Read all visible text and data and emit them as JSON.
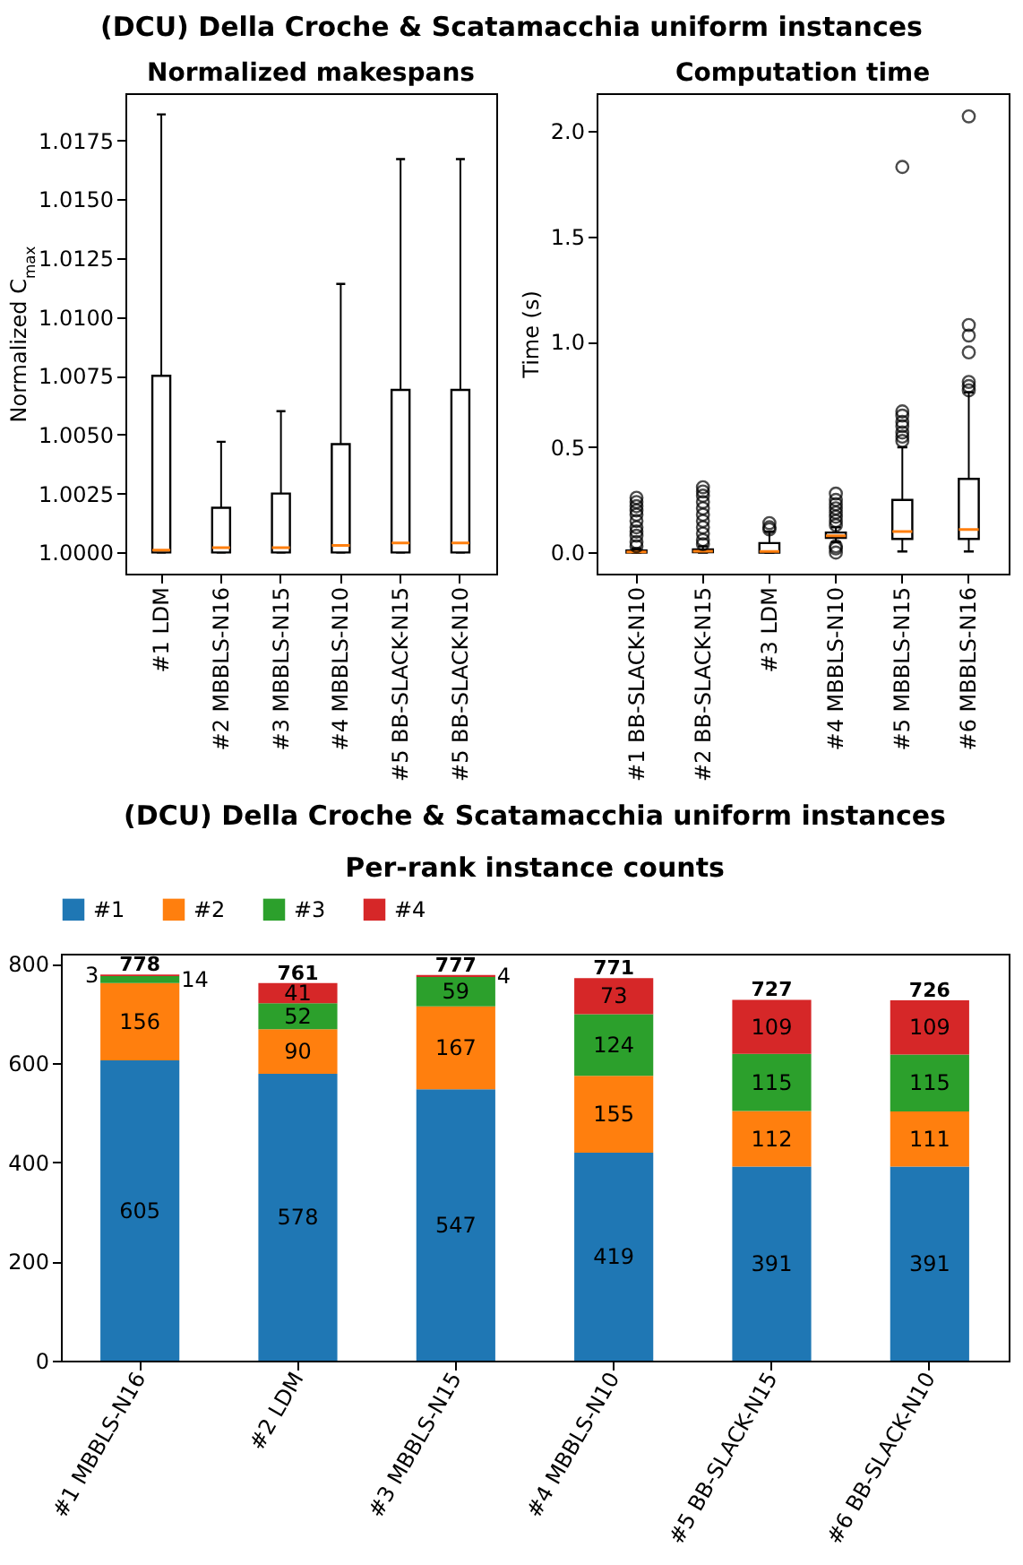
{
  "chart_data": [
    {
      "type": "box",
      "title": "Normalized makespans",
      "annotations": [
        "(DCU) Della Croche & Scatamacchia uniform instances"
      ],
      "ylabel": "Normalized C$_{max}$",
      "categories": [
        "#1 LDM",
        "#2 MBBLS-N16",
        "#3 MBBLS-N15",
        "#4 MBBLS-N10",
        "#5 BB-SLACK-N15",
        "#5 BB-SLACK-N10"
      ],
      "boxes": [
        {
          "low": 1.0,
          "q1": 1.0,
          "median": 1.0001,
          "q3": 1.0075,
          "high": 1.0186
        },
        {
          "low": 1.0,
          "q1": 1.0,
          "median": 1.0002,
          "q3": 1.0019,
          "high": 1.0047
        },
        {
          "low": 1.0,
          "q1": 1.0,
          "median": 1.0002,
          "q3": 1.0025,
          "high": 1.006
        },
        {
          "low": 1.0,
          "q1": 1.0,
          "median": 1.0003,
          "q3": 1.0046,
          "high": 1.0114
        },
        {
          "low": 1.0,
          "q1": 1.0,
          "median": 1.0004,
          "q3": 1.0069,
          "high": 1.0167
        },
        {
          "low": 1.0,
          "q1": 1.0,
          "median": 1.0004,
          "q3": 1.0069,
          "high": 1.0167
        }
      ],
      "ylim": [
        0.9991,
        1.0195
      ],
      "yticks": [
        {
          "value": 1,
          "label": "1.0000"
        },
        1.0025,
        {
          "value": 1.005,
          "label": "1.0050"
        },
        1.0075,
        {
          "value": 1.01,
          "label": "1.0100"
        },
        1.0125,
        {
          "value": 1.015,
          "label": "1.0150"
        },
        1.0175
      ],
      "grid": false
    },
    {
      "type": "box",
      "title": "Computation time",
      "ylabel": "Time (s)",
      "categories": [
        "#1 BB-SLACK-N10",
        "#2 BB-SLACK-N15",
        "#3 LDM",
        "#4 MBBLS-N10",
        "#5 MBBLS-N15",
        "#6 MBBLS-N16"
      ],
      "boxes": [
        {
          "low": 0,
          "q1": 0,
          "median": 0.003,
          "q3": 0.01,
          "high": 0.02,
          "outliers": [
            0.03,
            0.05,
            0.08,
            0.1,
            0.12,
            0.15,
            0.18,
            0.2,
            0.22,
            0.24,
            0.26
          ]
        },
        {
          "low": 0,
          "q1": 0.002,
          "median": 0.006,
          "q3": 0.015,
          "high": 0.03,
          "outliers": [
            0.04,
            0.06,
            0.09,
            0.12,
            0.15,
            0.18,
            0.21,
            0.24,
            0.27,
            0.29,
            0.31
          ]
        },
        {
          "low": 0,
          "q1": 0,
          "median": 0.005,
          "q3": 0.045,
          "high": 0.1,
          "outliers": [
            0.11,
            0.12,
            0.14
          ]
        },
        {
          "low": 0.05,
          "q1": 0.07,
          "median": 0.08,
          "q3": 0.095,
          "high": 0.12,
          "outliers": [
            0.0,
            0.02,
            0.03,
            0.13,
            0.15,
            0.17,
            0.19,
            0.21,
            0.23,
            0.25,
            0.28
          ]
        },
        {
          "low": 0.005,
          "q1": 0.065,
          "median": 0.1,
          "q3": 0.25,
          "high": 0.5,
          "outliers": [
            0.53,
            0.55,
            0.57,
            0.6,
            0.62,
            0.65,
            0.67,
            1.83
          ]
        },
        {
          "low": 0.005,
          "q1": 0.065,
          "median": 0.11,
          "q3": 0.35,
          "high": 0.76,
          "outliers": [
            0.77,
            0.79,
            0.81,
            0.95,
            1.03,
            1.08,
            2.07
          ]
        }
      ],
      "ylim": [
        -0.1,
        2.18
      ],
      "yticks": [
        {
          "value": 0,
          "label": "0.0"
        },
        0.5,
        {
          "value": 1,
          "label": "1.0"
        },
        1.5,
        {
          "value": 2,
          "label": "2.0"
        }
      ],
      "grid": false
    },
    {
      "type": "bar",
      "title": "(DCU) Della Croche & Scatamacchia uniform instances",
      "subtitle": "Per-rank instance counts",
      "stacked": true,
      "data_labels": true,
      "legend": "top",
      "grid": false,
      "categories": [
        "#1 MBBLS-N16",
        "#2 LDM",
        "#3 MBBLS-N15",
        "#4 MBBLS-N10",
        "#5 BB-SLACK-N15",
        "#6 BB-SLACK-N10"
      ],
      "series": [
        {
          "name": "#1",
          "color": "#1f77b4",
          "values": [
            605,
            578,
            547,
            419,
            391,
            391
          ]
        },
        {
          "name": "#2",
          "color": "#ff7f0e",
          "values": [
            156,
            90,
            167,
            155,
            112,
            111
          ]
        },
        {
          "name": "#3",
          "color": "#2ca02c",
          "values": [
            14,
            52,
            59,
            124,
            115,
            115
          ]
        },
        {
          "name": "#4",
          "color": "#d62728",
          "values": [
            3,
            41,
            4,
            73,
            109,
            109
          ]
        }
      ],
      "totals": [
        "778",
        "761",
        "777",
        "771",
        "727",
        "726"
      ],
      "ylim": [
        0,
        820
      ],
      "yticks": [
        0,
        200,
        400,
        600,
        800
      ]
    }
  ]
}
